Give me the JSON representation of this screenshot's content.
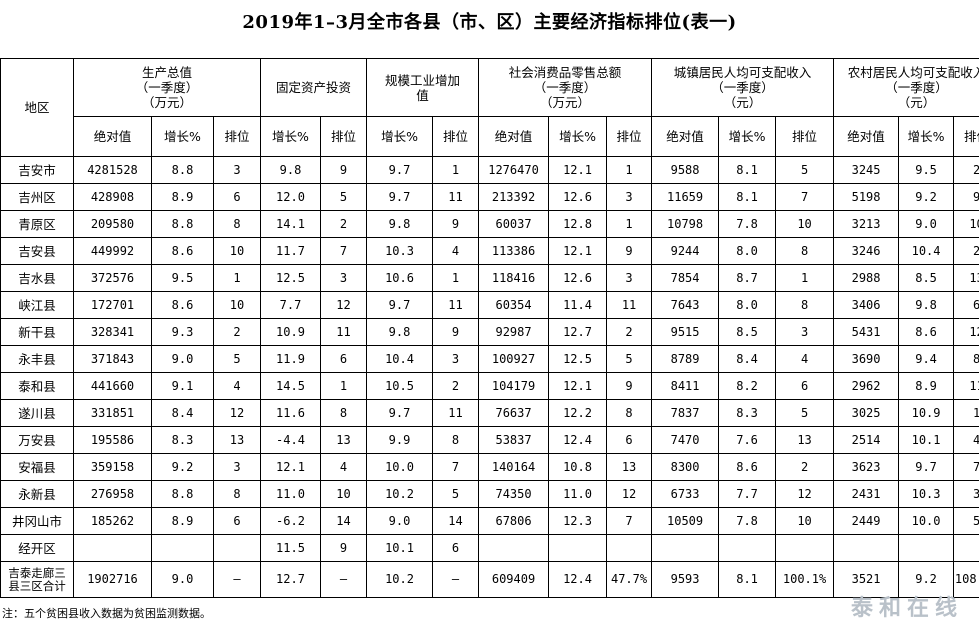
{
  "title": "2019年1–3月全市各县（市、区）主要经济指标排位(表一)",
  "headers": {
    "region": "地区",
    "groups": [
      "生产总值\n（一季度）\n（万元）",
      "固定资产投资",
      "规模工业增加\n值",
      "社会消费品零售总额\n（一季度）\n（万元）",
      "城镇居民人均可支配收入\n（一季度）\n（元）",
      "农村居民人均可支配收入\n（一季度）\n（元）"
    ],
    "sub": {
      "abs": "绝对值",
      "growth": "增长%",
      "rank": "排位"
    }
  },
  "rows": [
    {
      "region": "吉安市",
      "v": [
        "4281528",
        "8.8",
        "3",
        "9.8",
        "9",
        "9.7",
        "1",
        "1276470",
        "12.1",
        "1",
        "9588",
        "8.1",
        "5",
        "3245",
        "9.5",
        "2"
      ]
    },
    {
      "region": "吉州区",
      "v": [
        "428908",
        "8.9",
        "6",
        "12.0",
        "5",
        "9.7",
        "11",
        "213392",
        "12.6",
        "3",
        "11659",
        "8.1",
        "7",
        "5198",
        "9.2",
        "9"
      ]
    },
    {
      "region": "青原区",
      "v": [
        "209580",
        "8.8",
        "8",
        "14.1",
        "2",
        "9.8",
        "9",
        "60037",
        "12.8",
        "1",
        "10798",
        "7.8",
        "10",
        "3213",
        "9.0",
        "10"
      ]
    },
    {
      "region": "吉安县",
      "v": [
        "449992",
        "8.6",
        "10",
        "11.7",
        "7",
        "10.3",
        "4",
        "113386",
        "12.1",
        "9",
        "9244",
        "8.0",
        "8",
        "3246",
        "10.4",
        "2"
      ]
    },
    {
      "region": "吉水县",
      "v": [
        "372576",
        "9.5",
        "1",
        "12.5",
        "3",
        "10.6",
        "1",
        "118416",
        "12.6",
        "3",
        "7854",
        "8.7",
        "1",
        "2988",
        "8.5",
        "13"
      ]
    },
    {
      "region": "峡江县",
      "v": [
        "172701",
        "8.6",
        "10",
        "7.7",
        "12",
        "9.7",
        "11",
        "60354",
        "11.4",
        "11",
        "7643",
        "8.0",
        "8",
        "3406",
        "9.8",
        "6"
      ]
    },
    {
      "region": "新干县",
      "v": [
        "328341",
        "9.3",
        "2",
        "10.9",
        "11",
        "9.8",
        "9",
        "92987",
        "12.7",
        "2",
        "9515",
        "8.5",
        "3",
        "5431",
        "8.6",
        "12"
      ]
    },
    {
      "region": "永丰县",
      "v": [
        "371843",
        "9.0",
        "5",
        "11.9",
        "6",
        "10.4",
        "3",
        "100927",
        "12.5",
        "5",
        "8789",
        "8.4",
        "4",
        "3690",
        "9.4",
        "8"
      ]
    },
    {
      "region": "泰和县",
      "v": [
        "441660",
        "9.1",
        "4",
        "14.5",
        "1",
        "10.5",
        "2",
        "104179",
        "12.1",
        "9",
        "8411",
        "8.2",
        "6",
        "2962",
        "8.9",
        "11"
      ]
    },
    {
      "region": "遂川县",
      "v": [
        "331851",
        "8.4",
        "12",
        "11.6",
        "8",
        "9.7",
        "11",
        "76637",
        "12.2",
        "8",
        "7837",
        "8.3",
        "5",
        "3025",
        "10.9",
        "1"
      ]
    },
    {
      "region": "万安县",
      "v": [
        "195586",
        "8.3",
        "13",
        "-4.4",
        "13",
        "9.9",
        "8",
        "53837",
        "12.4",
        "6",
        "7470",
        "7.6",
        "13",
        "2514",
        "10.1",
        "4"
      ]
    },
    {
      "region": "安福县",
      "v": [
        "359158",
        "9.2",
        "3",
        "12.1",
        "4",
        "10.0",
        "7",
        "140164",
        "10.8",
        "13",
        "8300",
        "8.6",
        "2",
        "3623",
        "9.7",
        "7"
      ]
    },
    {
      "region": "永新县",
      "v": [
        "276958",
        "8.8",
        "8",
        "11.0",
        "10",
        "10.2",
        "5",
        "74350",
        "11.0",
        "12",
        "6733",
        "7.7",
        "12",
        "2431",
        "10.3",
        "3"
      ]
    },
    {
      "region": "井冈山市",
      "v": [
        "185262",
        "8.9",
        "6",
        "-6.2",
        "14",
        "9.0",
        "14",
        "67806",
        "12.3",
        "7",
        "10509",
        "7.8",
        "10",
        "2449",
        "10.0",
        "5"
      ]
    },
    {
      "region": "经开区",
      "v": [
        "",
        "",
        "",
        "11.5",
        "9",
        "10.1",
        "6",
        "",
        "",
        "",
        "",
        "",
        "",
        "",
        "",
        ""
      ]
    },
    {
      "region": "吉泰走廊三\n县三区合计",
      "v": [
        "1902716",
        "9.0",
        "–",
        "12.7",
        "–",
        "10.2",
        "–",
        "609409",
        "12.4",
        "47.7%",
        "9593",
        "8.1",
        "100.1%",
        "3521",
        "9.2",
        "108.5%"
      ]
    }
  ],
  "note": "注：五个贫困县收入数据为贫困监测数据。",
  "watermark": "泰和在线"
}
